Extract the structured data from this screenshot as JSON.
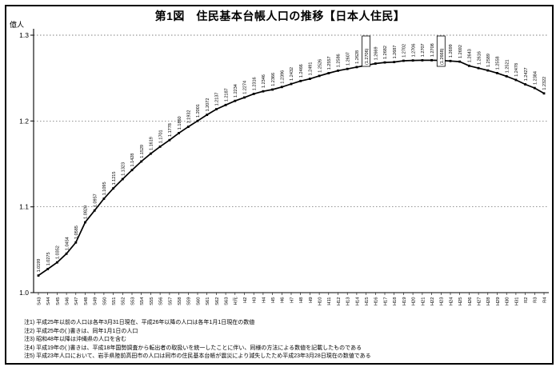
{
  "chart_data": {
    "type": "line",
    "title": "第1図　住民基本台帳人口の推移【日本人住民】",
    "unit_label": "億人",
    "ylabel": "億人",
    "ylim": [
      1.0,
      1.3
    ],
    "y_ticks": [
      1.0,
      1.1,
      1.2,
      1.3
    ],
    "grid": "horizontal-dotted",
    "legend": "none",
    "line_color": "#000000",
    "categories": [
      "S43",
      "S44",
      "S45",
      "S46",
      "S47",
      "S48",
      "S49",
      "S50",
      "S51",
      "S52",
      "S53",
      "S54",
      "S55",
      "S56",
      "S57",
      "S58",
      "S59",
      "S60",
      "S61",
      "S62",
      "S63",
      "H元",
      "H2",
      "H3",
      "H4",
      "H5",
      "H6",
      "H7",
      "H8",
      "H9",
      "H10",
      "H11",
      "H12",
      "H13",
      "H14",
      "H15",
      "H16",
      "H17",
      "H18",
      "H19",
      "H20",
      "H21",
      "H22",
      "H23",
      "H24",
      "H25",
      "H26",
      "H27",
      "H28",
      "H29",
      "H30",
      "H31",
      "R2",
      "R3",
      "R4"
    ],
    "values": [
      1.0199,
      1.0275,
      1.0352,
      1.0454,
      1.0585,
      1.082,
      1.0957,
      1.1095,
      1.1215,
      1.1323,
      1.1428,
      1.1529,
      1.1619,
      1.1701,
      1.1778,
      1.186,
      1.1932,
      1.2001,
      1.2072,
      1.2137,
      1.2187,
      1.2234,
      1.2274,
      1.2316,
      1.2346,
      1.2366,
      1.2396,
      1.2432,
      1.2466,
      1.2491,
      1.2526,
      1.2557,
      1.2586,
      1.2607,
      1.2628,
      1.2648,
      1.2669,
      1.2682,
      1.2687,
      1.2702,
      1.2706,
      1.2707,
      1.2708,
      1.2706,
      1.2699,
      1.2692,
      1.2643,
      1.2616,
      1.2589,
      1.2558,
      1.2521,
      1.2478,
      1.2427,
      1.2384,
      1.2322
    ],
    "annotations": [
      {
        "label": "(1.2706)",
        "boxed": true,
        "refers_to": "H19",
        "x_index": 35
      },
      {
        "label": "(1.2668)",
        "boxed": true,
        "refers_to": "H25",
        "x_index": 43
      }
    ],
    "notes": [
      "注1) 平成25年以前の人口は各年3月31日現在、平成26年以降の人口は各年1月1日現在の数値",
      "注2) 平成25年の( )書きは、同年1月1日の人口",
      "注3) 昭和48年以降は沖縄県の人口を含む",
      "注4) 平成19年の( )書きは、平成18年国勢調査から転出者の取扱いを統一したことに伴い、同様の方法による数値を記載したものである",
      "注5) 平成23年人口において、岩手県陸前高田市の人口は同市の住民基本台帳が震災により減失したため平成23年3月28日現在の数値である"
    ]
  }
}
